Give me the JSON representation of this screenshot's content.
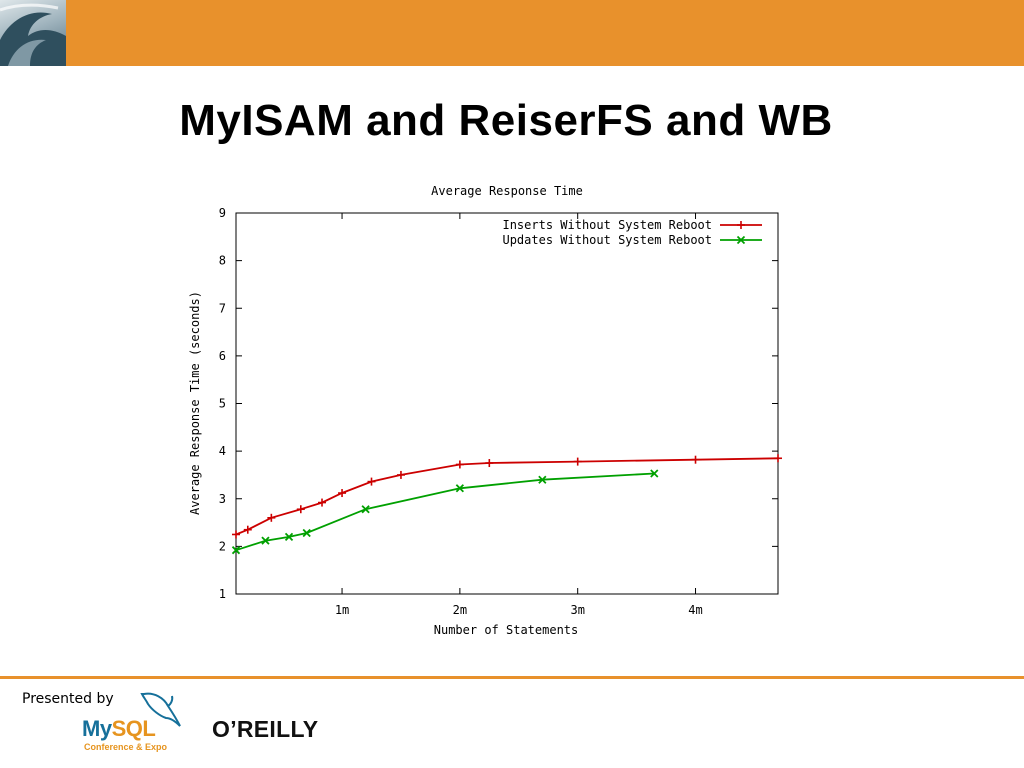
{
  "slide": {
    "title": "MyISAM and ReiserFS and WB",
    "presented_by": "Presented by",
    "mysql_my": "My",
    "mysql_sql": "SQL",
    "mysql_sub": "Conference & Expo",
    "oreilly": "O’REILLY"
  },
  "colors": {
    "accent": "#e8912c",
    "series1": "#cc0000",
    "series2": "#00a000"
  },
  "chart_data": {
    "type": "line",
    "title": "Average Response Time",
    "xlabel": "Number of Statements",
    "ylabel": "Average Response Time (seconds)",
    "xlim": [
      0.1,
      4.7
    ],
    "ylim": [
      1,
      9
    ],
    "xticks": [
      {
        "v": 1,
        "label": "1m"
      },
      {
        "v": 2,
        "label": "2m"
      },
      {
        "v": 3,
        "label": "3m"
      },
      {
        "v": 4,
        "label": "4m"
      }
    ],
    "yticks": [
      1,
      2,
      3,
      4,
      5,
      6,
      7,
      8,
      9
    ],
    "legend": "top-right",
    "series": [
      {
        "name": "Inserts Without System Reboot",
        "marker": "plus",
        "x": [
          0.1,
          0.2,
          0.4,
          0.65,
          0.83,
          1.0,
          1.25,
          1.5,
          2.0,
          2.25,
          3.0,
          4.0,
          4.7
        ],
        "y": [
          2.25,
          2.35,
          2.6,
          2.78,
          2.92,
          3.12,
          3.36,
          3.5,
          3.72,
          3.75,
          3.78,
          3.82,
          3.85
        ]
      },
      {
        "name": "Updates Without System Reboot",
        "marker": "cross",
        "x": [
          0.1,
          0.35,
          0.55,
          0.7,
          1.2,
          2.0,
          2.7,
          3.65
        ],
        "y": [
          1.92,
          2.12,
          2.2,
          2.28,
          2.78,
          3.22,
          3.4,
          3.53
        ]
      }
    ]
  }
}
